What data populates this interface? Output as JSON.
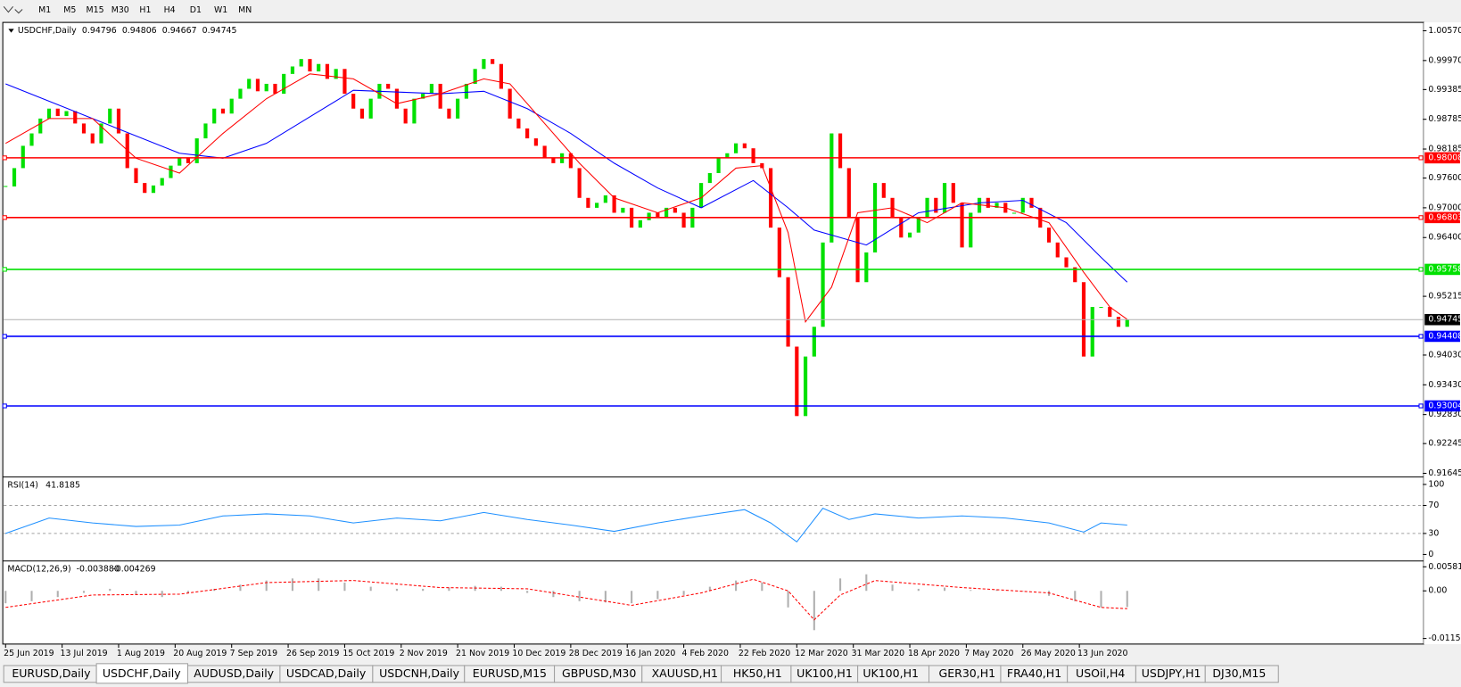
{
  "toolbar": {
    "timeframes": [
      "M1",
      "M5",
      "M15",
      "M30",
      "H1",
      "H4",
      "D1",
      "W1",
      "MN"
    ]
  },
  "chart": {
    "symbol": "USDCHF,Daily",
    "quote": [
      "0.94796",
      "0.94806",
      "0.94667",
      "0.94745"
    ],
    "xlim": [
      0,
      163
    ],
    "xticks": [
      {
        "value": 0,
        "label": "25 Jun 2019"
      },
      {
        "value": 6.5,
        "label": "13 Jul 2019"
      },
      {
        "value": 13,
        "label": "1 Aug 2019"
      },
      {
        "value": 19.5,
        "label": "20 Aug 2019"
      },
      {
        "value": 26,
        "label": "7 Sep 2019"
      },
      {
        "value": 32.5,
        "label": "26 Sep 2019"
      },
      {
        "value": 39,
        "label": "15 Oct 2019"
      },
      {
        "value": 45.5,
        "label": "2 Nov 2019"
      },
      {
        "value": 52,
        "label": "21 Nov 2019"
      },
      {
        "value": 58.5,
        "label": "10 Dec 2019"
      },
      {
        "value": 65,
        "label": "28 Dec 2019"
      },
      {
        "value": 71.5,
        "label": "16 Jan 2020"
      },
      {
        "value": 78,
        "label": "4 Feb 2020"
      },
      {
        "value": 84.5,
        "label": "22 Feb 2020"
      },
      {
        "value": 91,
        "label": "12 Mar 2020"
      },
      {
        "value": 97.5,
        "label": "31 Mar 2020"
      },
      {
        "value": 104,
        "label": "18 Apr 2020"
      },
      {
        "value": 110.5,
        "label": "7 May 2020"
      },
      {
        "value": 117,
        "label": "26 May 2020"
      },
      {
        "value": 123.5,
        "label": "13 Jun 2020"
      }
    ],
    "price": {
      "type": "candlestick",
      "ylim": [
        0.9159,
        1.0072
      ],
      "yticks": [
        {
          "value": 1.0057,
          "label": "1.00570"
        },
        {
          "value": 0.9997,
          "label": "0.99970"
        },
        0.99385,
        0.98785,
        0.98185,
        {
          "value": 0.976,
          "label": "0.97600"
        },
        {
          "value": 0.97,
          "label": "0.97000"
        },
        {
          "value": 0.964,
          "label": "0.96400"
        },
        0.95215,
        {
          "value": 0.9403,
          "label": "0.94030"
        },
        {
          "value": 0.9343,
          "label": "0.93430"
        },
        {
          "value": 0.9283,
          "label": "0.92830"
        },
        0.92245,
        0.91645
      ],
      "up_color": "#00e000",
      "down_color": "#ff0000",
      "close": [
        0.9743,
        0.978,
        0.9825,
        0.985,
        0.988,
        0.99,
        0.9885,
        0.9895,
        0.987,
        0.985,
        0.983,
        0.987,
        0.99,
        0.985,
        0.978,
        0.975,
        0.973,
        0.9745,
        0.976,
        0.9785,
        0.98,
        0.979,
        0.984,
        0.987,
        0.99,
        0.989,
        0.992,
        0.994,
        0.996,
        0.9935,
        0.995,
        0.993,
        0.997,
        0.9985,
        1.0,
        0.9975,
        0.999,
        0.996,
        0.998,
        0.993,
        0.99,
        0.988,
        0.992,
        0.995,
        0.994,
        0.99,
        0.987,
        0.992,
        0.993,
        0.995,
        0.99,
        0.988,
        0.992,
        0.995,
        0.998,
        1.0,
        0.999,
        0.994,
        0.988,
        0.986,
        0.984,
        0.9825,
        0.98,
        0.979,
        0.981,
        0.978,
        0.972,
        0.97,
        0.971,
        0.9725,
        0.969,
        0.97,
        0.966,
        0.9675,
        0.969,
        0.968,
        0.97,
        0.969,
        0.966,
        0.97,
        0.975,
        0.977,
        0.98,
        0.981,
        0.983,
        0.982,
        0.979,
        0.978,
        0.966,
        0.956,
        0.942,
        0.928,
        0.94,
        0.946,
        0.963,
        0.985,
        0.978,
        0.968,
        0.955,
        0.961,
        0.975,
        0.972,
        0.968,
        0.964,
        0.965,
        0.968,
        0.972,
        0.969,
        0.975,
        0.971,
        0.962,
        0.969,
        0.972,
        0.97,
        0.971,
        0.969,
        0.969,
        0.972,
        0.97,
        0.966,
        0.963,
        0.96,
        0.958,
        0.955,
        0.94,
        0.95,
        0.95,
        0.948,
        0.946,
        0.94745
      ],
      "moving_averages": [
        {
          "color": "#0000ff",
          "x": [
            0,
            10,
            20,
            25,
            30,
            40,
            50,
            55,
            60,
            65,
            70,
            75,
            80,
            86,
            90,
            93,
            96,
            99,
            105,
            112,
            117,
            122,
            126,
            129
          ],
          "values": [
            0.995,
            0.988,
            0.981,
            0.98,
            0.983,
            0.9937,
            0.993,
            0.9935,
            0.99,
            0.985,
            0.979,
            0.974,
            0.97,
            0.9755,
            0.97,
            0.9655,
            0.964,
            0.9625,
            0.969,
            0.971,
            0.9715,
            0.967,
            0.96,
            0.955
          ]
        },
        {
          "color": "#ff0000",
          "x": [
            0,
            5,
            10,
            15,
            20,
            25,
            30,
            35,
            40,
            45,
            50,
            55,
            58,
            62,
            66,
            70,
            75,
            80,
            84,
            87,
            90,
            92,
            95,
            98,
            102,
            106,
            110,
            115,
            120,
            124,
            127,
            129
          ],
          "values": [
            0.983,
            0.988,
            0.988,
            0.98,
            0.977,
            0.985,
            0.992,
            0.997,
            0.996,
            0.991,
            0.993,
            0.996,
            0.995,
            0.987,
            0.979,
            0.972,
            0.969,
            0.972,
            0.978,
            0.9785,
            0.965,
            0.947,
            0.954,
            0.969,
            0.97,
            0.967,
            0.971,
            0.97,
            0.967,
            0.957,
            0.95,
            0.9475
          ]
        }
      ],
      "levels": [
        {
          "value": 0.98008,
          "color": "#ff0000"
        },
        {
          "value": 0.96803,
          "color": "#ff0000"
        },
        {
          "value": 0.95758,
          "color": "#00e000"
        },
        {
          "value": 0.94408,
          "color": "#0000ff"
        },
        {
          "value": 0.93004,
          "color": "#0000ff"
        }
      ],
      "current": {
        "value": 0.94745,
        "color": "#000000"
      }
    },
    "rsi": {
      "label": "RSI(14)",
      "reading": "41.8185",
      "ylim": [
        -8,
        108
      ],
      "yticks": [
        100,
        70,
        30,
        0
      ],
      "levels": [
        30,
        70
      ],
      "color": "#1e90ff",
      "x": [
        0,
        5,
        10,
        15,
        20,
        25,
        30,
        35,
        40,
        45,
        50,
        55,
        60,
        65,
        70,
        75,
        80,
        85,
        88,
        91,
        94,
        97,
        100,
        105,
        110,
        115,
        120,
        124,
        126,
        129
      ],
      "values": [
        30,
        52,
        45,
        40,
        42,
        55,
        58,
        55,
        45,
        52,
        48,
        60,
        50,
        42,
        33,
        45,
        55,
        64,
        45,
        18,
        66,
        50,
        58,
        52,
        55,
        52,
        45,
        32,
        45,
        42
      ]
    },
    "macd": {
      "label": "MACD(12,26,9)",
      "readings": [
        "-0.003880",
        "-0.004269"
      ],
      "ylim": [
        -0.01286,
        0.00677
      ],
      "yticks": [
        0.005818,
        {
          "value": 0,
          "label": "0.00"
        },
        -0.01151
      ],
      "histogram": {
        "color": "#b0b0b0",
        "x": [
          0,
          3,
          6,
          9,
          12,
          15,
          18,
          21,
          24,
          27,
          30,
          33,
          36,
          39,
          42,
          45,
          48,
          51,
          54,
          57,
          60,
          63,
          66,
          69,
          72,
          75,
          78,
          81,
          84,
          87,
          90,
          93,
          96,
          99,
          102,
          105,
          108,
          111,
          114,
          117,
          120,
          123,
          126,
          129
        ],
        "values": [
          -0.003,
          -0.0025,
          -0.0015,
          -0.0005,
          0.0005,
          -0.001,
          -0.0015,
          -0.0005,
          0.0005,
          0.0015,
          0.0025,
          0.003,
          0.003,
          0.002,
          0.001,
          0.0005,
          0.0005,
          0.0008,
          0.0012,
          0.001,
          -0.0005,
          -0.0015,
          -0.0025,
          -0.0028,
          -0.003,
          -0.002,
          -0.001,
          0.001,
          0.0025,
          0.002,
          -0.004,
          -0.0095,
          0.003,
          0.004,
          0.0015,
          0.0005,
          0.0008,
          0.0002,
          0.0003,
          0,
          -0.0012,
          -0.0025,
          -0.004,
          -0.0039
        ]
      },
      "signal": {
        "color": "#ff0000",
        "x": [
          0,
          10,
          20,
          30,
          40,
          50,
          60,
          66,
          72,
          80,
          86,
          90,
          93,
          96,
          100,
          110,
          120,
          126,
          129
        ],
        "values": [
          -0.004,
          -0.001,
          -0.0008,
          0.002,
          0.0025,
          0.0008,
          0.0005,
          -0.0015,
          -0.0035,
          -0.0005,
          0.0028,
          0,
          -0.007,
          -0.001,
          0.0025,
          0.0008,
          -0.0005,
          -0.004,
          -0.0043
        ]
      }
    }
  },
  "tabs": {
    "items": [
      "EURUSD,Daily",
      "USDCHF,Daily",
      "AUDUSD,Daily",
      "USDCAD,Daily",
      "USDCNH,Daily",
      "EURUSD,M15",
      "GBPUSD,M30",
      "XAUUSD,H1",
      "HK50,H1",
      "UK100,H1",
      "UK100,H1",
      "GER30,H1",
      "FRA40,H1",
      "USOil,H4",
      "USDJPY,H1",
      "DJ30,M15"
    ],
    "active": 1
  }
}
